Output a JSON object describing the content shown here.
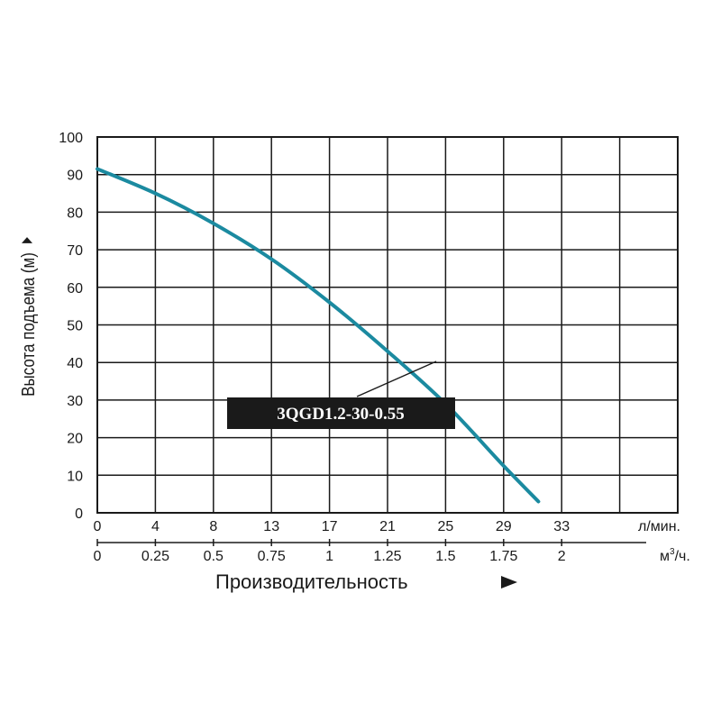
{
  "chart_data": {
    "type": "line",
    "ylabel": "Высота подъема (м)",
    "xlabel": "Производительность",
    "ylim": [
      0,
      100
    ],
    "xlim": [
      0,
      2.5
    ],
    "grid": true,
    "y_ticks": [
      "0",
      "10",
      "20",
      "30",
      "40",
      "50",
      "60",
      "70",
      "80",
      "90",
      "100"
    ],
    "x_ticks_lmin": [
      "0",
      "4",
      "8",
      "13",
      "17",
      "21",
      "25",
      "29",
      "33"
    ],
    "x_unit_lmin": "л/мин.",
    "x_ticks_m3h": [
      "0",
      "0.25",
      "0.5",
      "0.75",
      "1",
      "1.25",
      "1.5",
      "1.75",
      "2"
    ],
    "x_unit_m3h_base": "м",
    "x_unit_m3h_sup": "3",
    "x_unit_m3h_tail": "/ч.",
    "series": [
      {
        "name": "3QGD1.2-30-0.55",
        "color": "#1b8aa0",
        "x": [
          0,
          0.25,
          0.5,
          0.75,
          1.0,
          1.25,
          1.5,
          1.75,
          1.9
        ],
        "y": [
          91.5,
          85,
          77,
          67.5,
          56,
          43,
          29,
          12.5,
          3
        ]
      }
    ]
  }
}
